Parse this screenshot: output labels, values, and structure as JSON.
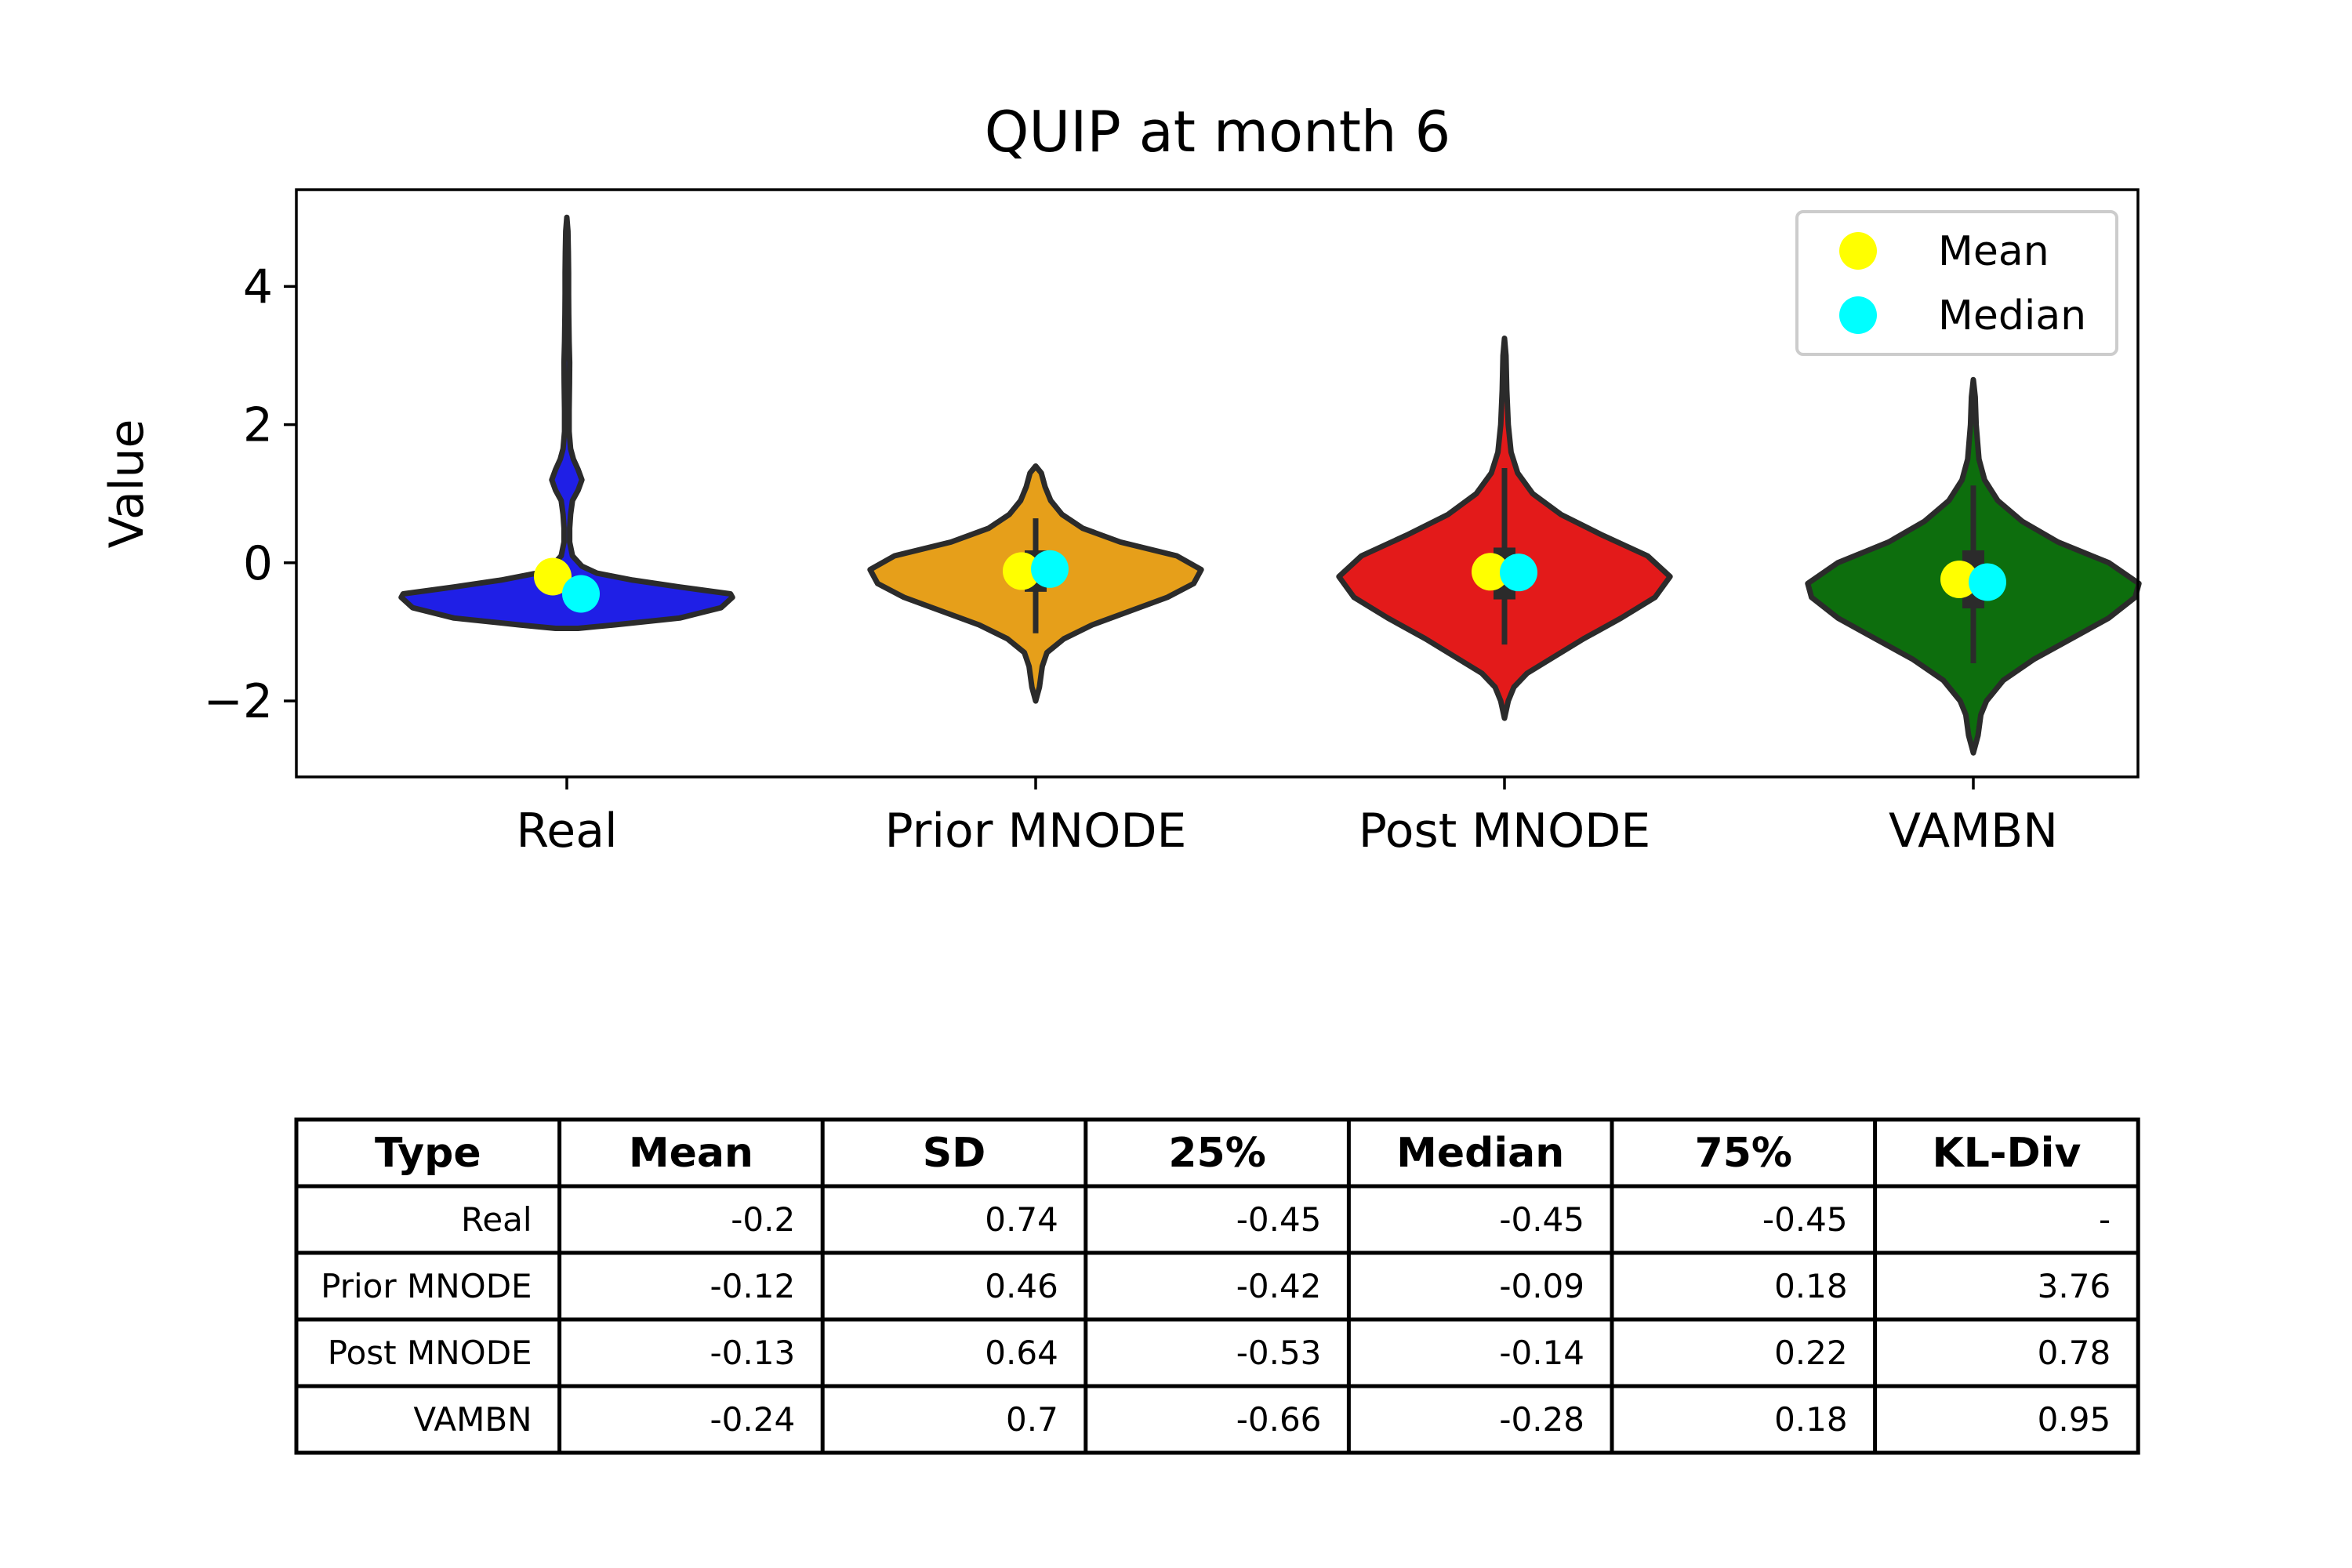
{
  "chart_data": {
    "type": "violin",
    "title": "QUIP at month 6",
    "ylabel": "Value",
    "xlabel": "",
    "ylim": [
      -3.1,
      5.4
    ],
    "yticks": [
      -2,
      0,
      2,
      4
    ],
    "ytick_labels": [
      "−2",
      "0",
      "2",
      "4"
    ],
    "categories": [
      "Real",
      "Prior MNODE",
      "Post MNODE",
      "VAMBN"
    ],
    "legend": {
      "placement": "top-right",
      "entries": [
        {
          "label": "Mean",
          "color": "#ffff00"
        },
        {
          "label": "Median",
          "color": "#00ffff"
        }
      ]
    },
    "series": [
      {
        "category": "Real",
        "color": "#1f1fe6",
        "min": -0.95,
        "max": 5.0,
        "q1": -0.45,
        "median": -0.45,
        "q3": -0.45,
        "mean": -0.2,
        "density": [
          [
            -0.95,
            0.06
          ],
          [
            -0.9,
            0.25
          ],
          [
            -0.8,
            0.6
          ],
          [
            -0.65,
            0.82
          ],
          [
            -0.5,
            0.88
          ],
          [
            -0.45,
            0.87
          ],
          [
            -0.35,
            0.6
          ],
          [
            -0.25,
            0.35
          ],
          [
            -0.15,
            0.16
          ],
          [
            -0.05,
            0.08
          ],
          [
            0.1,
            0.03
          ],
          [
            0.3,
            0.015
          ],
          [
            0.5,
            0.015
          ],
          [
            0.7,
            0.02
          ],
          [
            0.9,
            0.03
          ],
          [
            1.05,
            0.06
          ],
          [
            1.2,
            0.08
          ],
          [
            1.35,
            0.06
          ],
          [
            1.5,
            0.035
          ],
          [
            1.65,
            0.02
          ],
          [
            1.9,
            0.012
          ],
          [
            2.2,
            0.012
          ],
          [
            2.6,
            0.014
          ],
          [
            2.9,
            0.015
          ],
          [
            3.2,
            0.012
          ],
          [
            3.6,
            0.01
          ],
          [
            3.9,
            0.009
          ],
          [
            4.2,
            0.009
          ],
          [
            4.5,
            0.008
          ],
          [
            4.8,
            0.006
          ],
          [
            5.0,
            0.0
          ]
        ]
      },
      {
        "category": "Prior MNODE",
        "color": "#e69f1a",
        "min": -2.0,
        "max": 1.4,
        "q1": -0.42,
        "median": -0.09,
        "q3": 0.18,
        "mean": -0.12,
        "density": [
          [
            -2.0,
            0.0
          ],
          [
            -1.8,
            0.02
          ],
          [
            -1.5,
            0.035
          ],
          [
            -1.3,
            0.06
          ],
          [
            -1.1,
            0.15
          ],
          [
            -0.9,
            0.3
          ],
          [
            -0.7,
            0.5
          ],
          [
            -0.5,
            0.7
          ],
          [
            -0.3,
            0.84
          ],
          [
            -0.1,
            0.88
          ],
          [
            0.1,
            0.75
          ],
          [
            0.3,
            0.45
          ],
          [
            0.5,
            0.25
          ],
          [
            0.7,
            0.14
          ],
          [
            0.9,
            0.08
          ],
          [
            1.1,
            0.05
          ],
          [
            1.3,
            0.03
          ],
          [
            1.4,
            0.0
          ]
        ]
      },
      {
        "category": "Post MNODE",
        "color": "#e31a1a",
        "min": -2.25,
        "max": 3.25,
        "q1": -0.53,
        "median": -0.14,
        "q3": 0.22,
        "mean": -0.13,
        "density": [
          [
            -2.25,
            0.0
          ],
          [
            -2.0,
            0.02
          ],
          [
            -1.8,
            0.05
          ],
          [
            -1.6,
            0.12
          ],
          [
            -1.4,
            0.24
          ],
          [
            -1.1,
            0.42
          ],
          [
            -0.8,
            0.62
          ],
          [
            -0.5,
            0.8
          ],
          [
            -0.2,
            0.88
          ],
          [
            0.1,
            0.76
          ],
          [
            0.4,
            0.52
          ],
          [
            0.7,
            0.3
          ],
          [
            1.0,
            0.15
          ],
          [
            1.3,
            0.07
          ],
          [
            1.6,
            0.035
          ],
          [
            2.0,
            0.02
          ],
          [
            2.5,
            0.012
          ],
          [
            3.0,
            0.008
          ],
          [
            3.25,
            0.0
          ]
        ]
      },
      {
        "category": "VAMBN",
        "color": "#0d6e0d",
        "min": -2.75,
        "max": 2.65,
        "q1": -0.66,
        "median": -0.28,
        "q3": 0.18,
        "mean": -0.24,
        "density": [
          [
            -2.75,
            0.0
          ],
          [
            -2.5,
            0.025
          ],
          [
            -2.2,
            0.04
          ],
          [
            -2.0,
            0.07
          ],
          [
            -1.7,
            0.16
          ],
          [
            -1.4,
            0.32
          ],
          [
            -1.1,
            0.52
          ],
          [
            -0.8,
            0.72
          ],
          [
            -0.5,
            0.86
          ],
          [
            -0.3,
            0.88
          ],
          [
            0.0,
            0.72
          ],
          [
            0.3,
            0.45
          ],
          [
            0.6,
            0.26
          ],
          [
            0.9,
            0.13
          ],
          [
            1.2,
            0.06
          ],
          [
            1.5,
            0.03
          ],
          [
            2.0,
            0.015
          ],
          [
            2.4,
            0.01
          ],
          [
            2.65,
            0.0
          ]
        ]
      }
    ]
  },
  "table": {
    "columns": [
      "Type",
      "Mean",
      "SD",
      "25%",
      "Median",
      "75%",
      "KL-Div"
    ],
    "rows": [
      [
        "Real",
        "-0.2",
        "0.74",
        "-0.45",
        "-0.45",
        "-0.45",
        "-"
      ],
      [
        "Prior MNODE",
        "-0.12",
        "0.46",
        "-0.42",
        "-0.09",
        "0.18",
        "3.76"
      ],
      [
        "Post MNODE",
        "-0.13",
        "0.64",
        "-0.53",
        "-0.14",
        "0.22",
        "0.78"
      ],
      [
        "VAMBN",
        "-0.24",
        "0.7",
        "-0.66",
        "-0.28",
        "0.18",
        "0.95"
      ]
    ]
  }
}
